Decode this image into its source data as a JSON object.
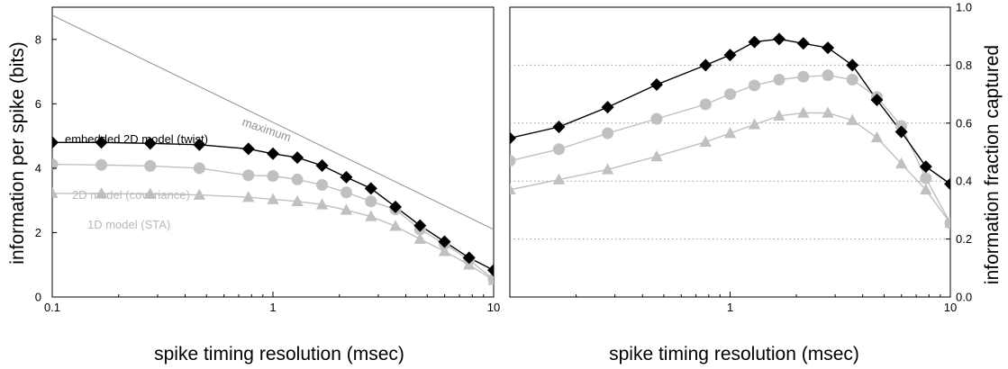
{
  "chart_data": [
    {
      "type": "line",
      "title": "",
      "xlabel": "spike timing resolution (msec)",
      "ylabel": "information per spike (bits)",
      "xscale": "log",
      "xlim": [
        0.1,
        10
      ],
      "ylim": [
        0,
        9
      ],
      "xticks": [
        {
          "value": 0.1,
          "label": "0.1"
        },
        {
          "value": 1,
          "label": "1"
        },
        {
          "value": 10,
          "label": "10"
        }
      ],
      "yticks": [
        {
          "value": 0,
          "label": "0"
        },
        {
          "value": 2,
          "label": "2"
        },
        {
          "value": 4,
          "label": "4"
        },
        {
          "value": 6,
          "label": "6"
        },
        {
          "value": 8,
          "label": "8"
        }
      ],
      "grid": false,
      "series": [
        {
          "name": "maximum",
          "marker": "none",
          "color": "#909090",
          "x": [
            0.1,
            10
          ],
          "y": [
            8.75,
            2.1
          ]
        },
        {
          "name": "embedded 2D model (twist)",
          "marker": "diamond",
          "color": "#000000",
          "x": [
            0.1,
            0.167,
            0.278,
            0.464,
            0.774,
            1.0,
            1.29,
            1.67,
            2.15,
            2.78,
            3.59,
            4.64,
            5.99,
            7.74,
            10.0
          ],
          "y": [
            4.8,
            4.8,
            4.77,
            4.73,
            4.6,
            4.45,
            4.33,
            4.08,
            3.72,
            3.37,
            2.8,
            2.22,
            1.72,
            1.22,
            0.83
          ]
        },
        {
          "name": "2D model (covariance)",
          "marker": "circle",
          "color": "#c0c0c0",
          "x": [
            0.1,
            0.167,
            0.278,
            0.464,
            0.774,
            1.0,
            1.29,
            1.67,
            2.15,
            2.78,
            3.59,
            4.64,
            5.99,
            7.74,
            10.0
          ],
          "y": [
            4.12,
            4.1,
            4.07,
            4.0,
            3.78,
            3.76,
            3.65,
            3.48,
            3.25,
            2.97,
            2.72,
            2.1,
            1.65,
            1.15,
            0.55
          ]
        },
        {
          "name": "1D model (STA)",
          "marker": "triangle",
          "color": "#c0c0c0",
          "x": [
            0.1,
            0.167,
            0.278,
            0.464,
            0.774,
            1.0,
            1.29,
            1.67,
            2.15,
            2.78,
            3.59,
            4.64,
            5.99,
            7.74,
            10.0
          ],
          "y": [
            3.22,
            3.21,
            3.2,
            3.17,
            3.1,
            3.03,
            2.97,
            2.87,
            2.7,
            2.5,
            2.2,
            1.8,
            1.42,
            1.0,
            0.52
          ]
        }
      ],
      "annotations": [
        "maximum",
        "embedded 2D model (twist)",
        "2D model (covariance)",
        "1D model (STA)"
      ]
    },
    {
      "type": "line",
      "title": "",
      "xlabel": "spike timing resolution (msec)",
      "ylabel": "information fraction captured",
      "xscale": "log",
      "xlim": [
        0.1,
        10
      ],
      "ylim": [
        0,
        1
      ],
      "yaxis_side": "right",
      "xticks": [
        {
          "value": 1,
          "label": "1"
        },
        {
          "value": 10,
          "label": "10"
        }
      ],
      "yticks": [
        {
          "value": 0,
          "label": "0.0"
        },
        {
          "value": 0.2,
          "label": "0.2"
        },
        {
          "value": 0.4,
          "label": "0.4"
        },
        {
          "value": 0.6,
          "label": "0.6"
        },
        {
          "value": 0.8,
          "label": "0.8"
        },
        {
          "value": 1.0,
          "label": "1.0"
        }
      ],
      "grid": "horizontal dotted at 0.2, 0.4, 0.6, 0.8",
      "series": [
        {
          "name": "embedded 2D model (twist)",
          "marker": "diamond",
          "color": "#000000",
          "x": [
            0.1,
            0.167,
            0.278,
            0.464,
            0.774,
            1.0,
            1.29,
            1.67,
            2.15,
            2.78,
            3.59,
            4.64,
            5.99,
            7.74,
            10.0
          ],
          "y": [
            0.548,
            0.587,
            0.655,
            0.733,
            0.8,
            0.835,
            0.88,
            0.89,
            0.875,
            0.86,
            0.8,
            0.68,
            0.57,
            0.45,
            0.39
          ]
        },
        {
          "name": "2D model (covariance)",
          "marker": "circle",
          "color": "#c0c0c0",
          "x": [
            0.1,
            0.167,
            0.278,
            0.464,
            0.774,
            1.0,
            1.29,
            1.67,
            2.15,
            2.78,
            3.59,
            4.64,
            5.99,
            7.74,
            10.0
          ],
          "y": [
            0.47,
            0.51,
            0.565,
            0.615,
            0.665,
            0.7,
            0.73,
            0.75,
            0.76,
            0.765,
            0.75,
            0.69,
            0.59,
            0.41,
            0.255
          ]
        },
        {
          "name": "1D model (STA)",
          "marker": "triangle",
          "color": "#c0c0c0",
          "x": [
            0.1,
            0.167,
            0.278,
            0.464,
            0.774,
            1.0,
            1.29,
            1.67,
            2.15,
            2.78,
            3.59,
            4.64,
            5.99,
            7.74,
            10.0
          ],
          "y": [
            0.37,
            0.405,
            0.44,
            0.485,
            0.535,
            0.565,
            0.595,
            0.625,
            0.635,
            0.635,
            0.61,
            0.55,
            0.46,
            0.37,
            0.255
          ]
        }
      ]
    }
  ]
}
